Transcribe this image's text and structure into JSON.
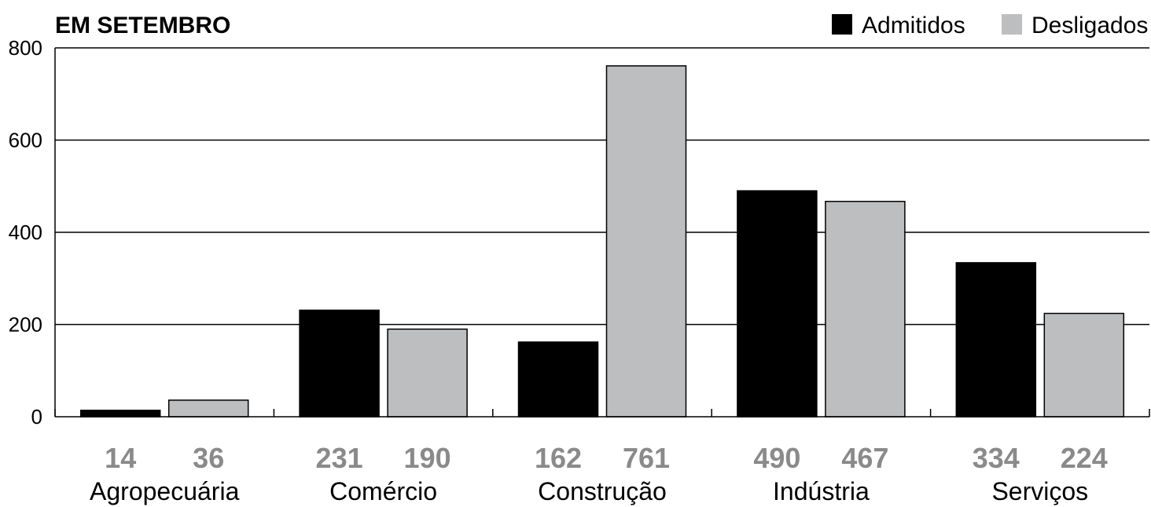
{
  "chart_data": {
    "type": "bar",
    "title": "EM SETEMBRO",
    "categories": [
      "Agropecuária",
      "Comércio",
      "Construção",
      "Indústria",
      "Serviços"
    ],
    "series": [
      {
        "name": "Admitidos",
        "values": [
          14,
          231,
          162,
          490,
          334
        ],
        "color": "#000000"
      },
      {
        "name": "Desligados",
        "values": [
          36,
          190,
          761,
          467,
          224
        ],
        "color": "#bdbec0"
      }
    ],
    "yticks": [
      "0",
      "200",
      "400",
      "600",
      "800"
    ],
    "ylim": [
      0,
      800
    ],
    "grid": true,
    "legend_position": "top-right",
    "value_label_color": "#8a8a8a"
  }
}
